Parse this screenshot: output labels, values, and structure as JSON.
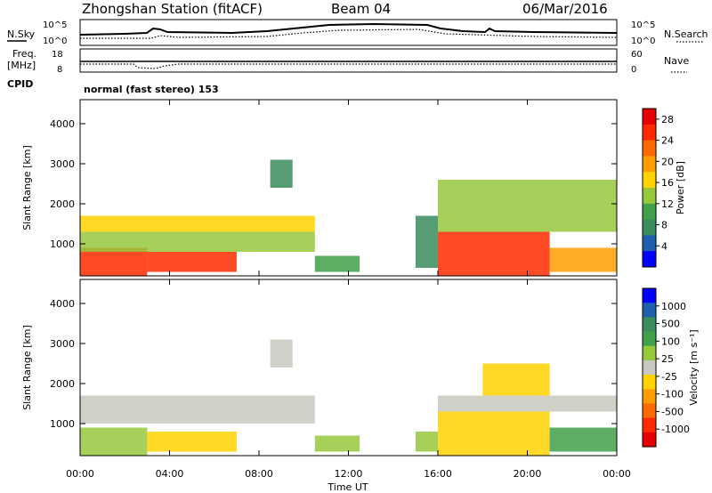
{
  "header": {
    "station": "Zhongshan Station (fitACF)",
    "beam": "Beam 04",
    "date": "06/Mar/2016"
  },
  "noise_panel": {
    "left_label": "N.Sky",
    "right_label": "N.Search",
    "left_ticks": [
      "10^5",
      "10^0"
    ],
    "right_ticks": [
      "10^5",
      "10^0"
    ]
  },
  "freq_panel": {
    "left_label_1": "Freq.",
    "left_label_2": "[MHz]",
    "right_label": "Nave",
    "left_ticks": [
      "18",
      "8"
    ],
    "right_ticks": [
      "60",
      "0"
    ]
  },
  "cpid": {
    "label": "CPID",
    "text": "normal (fast stereo) 153"
  },
  "colors": {
    "power_scale": [
      "#0000ff",
      "#1f5fb0",
      "#3a8c5a",
      "#41a04a",
      "#96c83c",
      "#ffd200",
      "#ff9c00",
      "#ff6a00",
      "#ff2a00",
      "#e60000"
    ],
    "velocity_scale": [
      "#0000ff",
      "#1f5fb0",
      "#3a8c5a",
      "#41a04a",
      "#96c83c",
      "#c8c8c0",
      "#ffd200",
      "#ff9c00",
      "#ff6a00",
      "#ff2a00",
      "#e60000"
    ]
  },
  "chart_data": [
    {
      "type": "heatmap",
      "panel": "power",
      "ylabel": "Slant Range [km]",
      "xlabel": "",
      "ylim": [
        200,
        4600
      ],
      "yticks": [
        "1000",
        "2000",
        "3000",
        "4000"
      ],
      "colorbar_label": "Power [dB]",
      "colorbar_ticks": [
        "4",
        "8",
        "12",
        "16",
        "20",
        "24",
        "28"
      ],
      "colorbar_range": [
        0,
        30
      ],
      "xticks": [
        "00:00",
        "04:00",
        "08:00",
        "12:00",
        "16:00",
        "20:00",
        "00:00"
      ],
      "xlim_hours": [
        0,
        24
      ],
      "echo_regions": [
        {
          "t_start": 0.0,
          "t_end": 3.0,
          "r_min": 200,
          "r_max": 900,
          "value": 26
        },
        {
          "t_start": 3.0,
          "t_end": 7.0,
          "r_min": 300,
          "r_max": 800,
          "value": 24
        },
        {
          "t_start": 0.0,
          "t_end": 10.5,
          "r_min": 800,
          "r_max": 1300,
          "value": 12
        },
        {
          "t_start": 0.0,
          "t_end": 10.5,
          "r_min": 1300,
          "r_max": 1700,
          "value": 16
        },
        {
          "t_start": 8.5,
          "t_end": 9.5,
          "r_min": 2400,
          "r_max": 3100,
          "value": 7
        },
        {
          "t_start": 10.5,
          "t_end": 12.5,
          "r_min": 300,
          "r_max": 700,
          "value": 10
        },
        {
          "t_start": 15.0,
          "t_end": 16.0,
          "r_min": 400,
          "r_max": 1700,
          "value": 6
        },
        {
          "t_start": 16.0,
          "t_end": 21.0,
          "r_min": 200,
          "r_max": 1300,
          "value": 24
        },
        {
          "t_start": 16.0,
          "t_end": 24.0,
          "r_min": 1300,
          "r_max": 2600,
          "value": 14
        },
        {
          "t_start": 21.0,
          "t_end": 24.0,
          "r_min": 300,
          "r_max": 900,
          "value": 20
        }
      ]
    },
    {
      "type": "heatmap",
      "panel": "velocity",
      "ylabel": "Slant Range [km]",
      "xlabel": "Time UT",
      "ylim": [
        200,
        4600
      ],
      "yticks": [
        "1000",
        "2000",
        "3000",
        "4000"
      ],
      "colorbar_label": "Velocity [m s⁻¹]",
      "colorbar_ticks": [
        "1000",
        "500",
        "100",
        "25",
        "-25",
        "-100",
        "-500",
        "-1000"
      ],
      "colorbar_range": [
        -1200,
        1200
      ],
      "xticks": [
        "00:00",
        "04:00",
        "08:00",
        "12:00",
        "16:00",
        "20:00",
        "00:00"
      ],
      "xlim_hours": [
        0,
        24
      ],
      "echo_regions": [
        {
          "t_start": 0.0,
          "t_end": 3.0,
          "r_min": 200,
          "r_max": 900,
          "value": 150
        },
        {
          "t_start": 3.0,
          "t_end": 7.0,
          "r_min": 300,
          "r_max": 800,
          "value": -150
        },
        {
          "t_start": 0.0,
          "t_end": 10.5,
          "r_min": 1000,
          "r_max": 1700,
          "value": 0
        },
        {
          "t_start": 8.5,
          "t_end": 9.5,
          "r_min": 2400,
          "r_max": 3100,
          "value": -50
        },
        {
          "t_start": 10.5,
          "t_end": 12.5,
          "r_min": 300,
          "r_max": 700,
          "value": 200
        },
        {
          "t_start": 15.0,
          "t_end": 16.0,
          "r_min": 300,
          "r_max": 800,
          "value": 300
        },
        {
          "t_start": 16.0,
          "t_end": 21.0,
          "r_min": 200,
          "r_max": 1300,
          "value": -300
        },
        {
          "t_start": 16.0,
          "t_end": 24.0,
          "r_min": 1300,
          "r_max": 1700,
          "value": 0
        },
        {
          "t_start": 18.0,
          "t_end": 21.0,
          "r_min": 1700,
          "r_max": 2500,
          "value": -200
        },
        {
          "t_start": 21.0,
          "t_end": 24.0,
          "r_min": 300,
          "r_max": 900,
          "value": 400
        }
      ]
    }
  ]
}
